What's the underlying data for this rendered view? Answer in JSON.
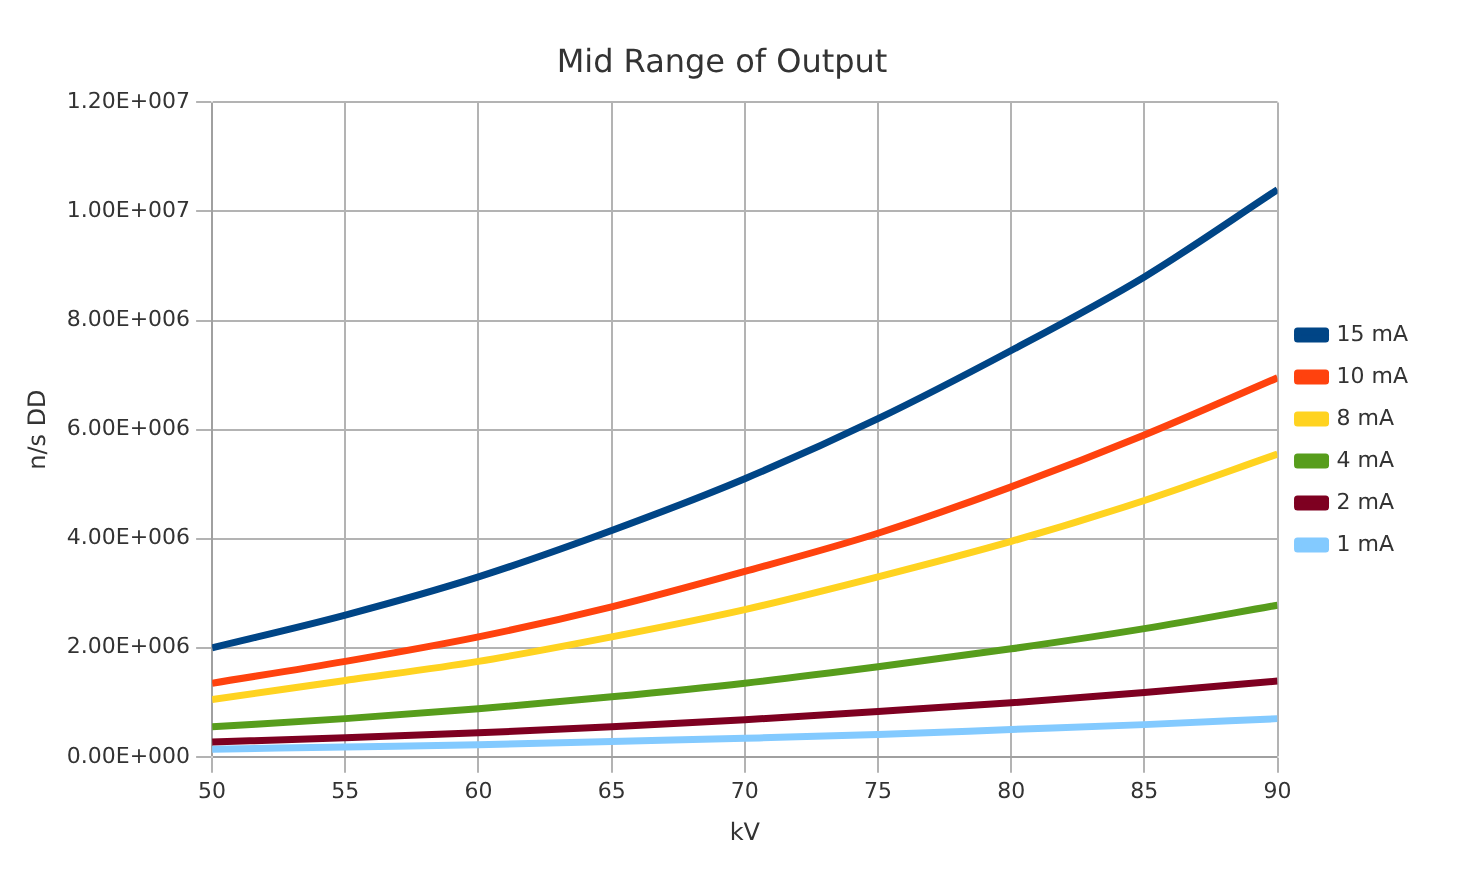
{
  "chart_data": {
    "type": "line",
    "title": "Mid Range of Output",
    "xlabel": "kV",
    "ylabel": "n/s DD",
    "x": [
      50,
      55,
      60,
      65,
      70,
      75,
      80,
      85,
      90
    ],
    "series": [
      {
        "name": "15 mA",
        "color": "#004586",
        "values": [
          2000000,
          2600000,
          3300000,
          4150000,
          5100000,
          6200000,
          7450000,
          8800000,
          10400000
        ]
      },
      {
        "name": "10 mA",
        "color": "#ff420e",
        "values": [
          1350000,
          1750000,
          2200000,
          2750000,
          3400000,
          4100000,
          4950000,
          5900000,
          6950000
        ]
      },
      {
        "name": "8 mA",
        "color": "#ffd320",
        "values": [
          1050000,
          1400000,
          1750000,
          2200000,
          2700000,
          3300000,
          3950000,
          4700000,
          5550000
        ]
      },
      {
        "name": "4 mA",
        "color": "#579d1c",
        "values": [
          550000,
          700000,
          880000,
          1100000,
          1350000,
          1650000,
          1980000,
          2350000,
          2780000
        ]
      },
      {
        "name": "2 mA",
        "color": "#7e0021",
        "values": [
          270000,
          350000,
          440000,
          550000,
          680000,
          830000,
          990000,
          1180000,
          1390000
        ]
      },
      {
        "name": "1 mA",
        "color": "#83caff",
        "values": [
          140000,
          180000,
          220000,
          280000,
          340000,
          410000,
          500000,
          590000,
          700000
        ]
      }
    ],
    "xlim": [
      50,
      90
    ],
    "xticks": [
      50,
      55,
      60,
      65,
      70,
      75,
      80,
      85,
      90
    ],
    "ylim": [
      0,
      12000000
    ],
    "yticks": [
      {
        "value": 0,
        "label": "0.00E+000"
      },
      {
        "value": 2000000,
        "label": "2.00E+006"
      },
      {
        "value": 4000000,
        "label": "4.00E+006"
      },
      {
        "value": 6000000,
        "label": "6.00E+006"
      },
      {
        "value": 8000000,
        "label": "8.00E+006"
      },
      {
        "value": 10000000,
        "label": "1.00E+007"
      },
      {
        "value": 12000000,
        "label": "1.20E+007"
      }
    ],
    "grid": true,
    "legend": "right",
    "marker": "none",
    "line_style": "solid"
  }
}
